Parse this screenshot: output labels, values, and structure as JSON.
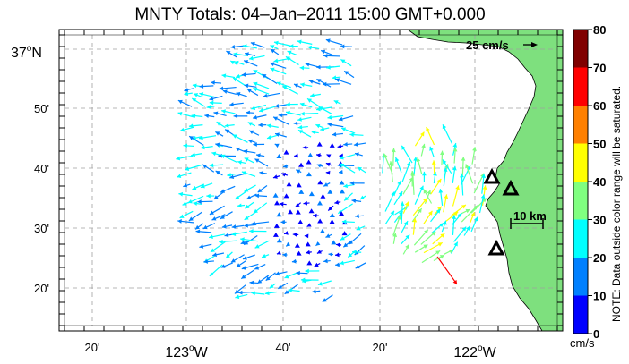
{
  "title": "MNTY Totals: 04–Jan–2011 15:00 GMT+0.000",
  "map": {
    "x_labels": [
      {
        "minutes": "20'"
      },
      {
        "deg": "123",
        "hemi": "W"
      },
      {
        "minutes": "40'"
      },
      {
        "minutes": "20'"
      },
      {
        "deg": "122",
        "hemi": "W"
      }
    ],
    "y_labels": [
      {
        "deg": "37",
        "hemi": "N"
      },
      {
        "minutes": "50'"
      },
      {
        "minutes": "40'"
      },
      {
        "minutes": "30'"
      },
      {
        "minutes": "20'"
      }
    ],
    "reference_vector_label": "25 cm/s",
    "scale_bar_label": "10 km",
    "land_color": "#7ee07e",
    "sites": [
      "triangle",
      "triangle",
      "triangle",
      "triangle"
    ]
  },
  "colorbar": {
    "ticks": [
      "0",
      "10",
      "20",
      "30",
      "40",
      "50",
      "60",
      "70",
      "80"
    ],
    "colors": [
      "#0000ff",
      "#0080ff",
      "#00ffff",
      "#80ff80",
      "#ffff00",
      "#ff8000",
      "#ff0000",
      "#800000"
    ],
    "units": "cm/s",
    "note": "NOTE: Data outside color range will be saturated."
  },
  "vector_field": {
    "speed_units": "cm/s",
    "color_scale": [
      0,
      80
    ],
    "offshore_region": "mixed blue/cyan vectors, mostly toward west-southwest",
    "nearshore_region": "green/yellow vectors toward north-northeast, one red vector near 122°10'W 20'N"
  }
}
